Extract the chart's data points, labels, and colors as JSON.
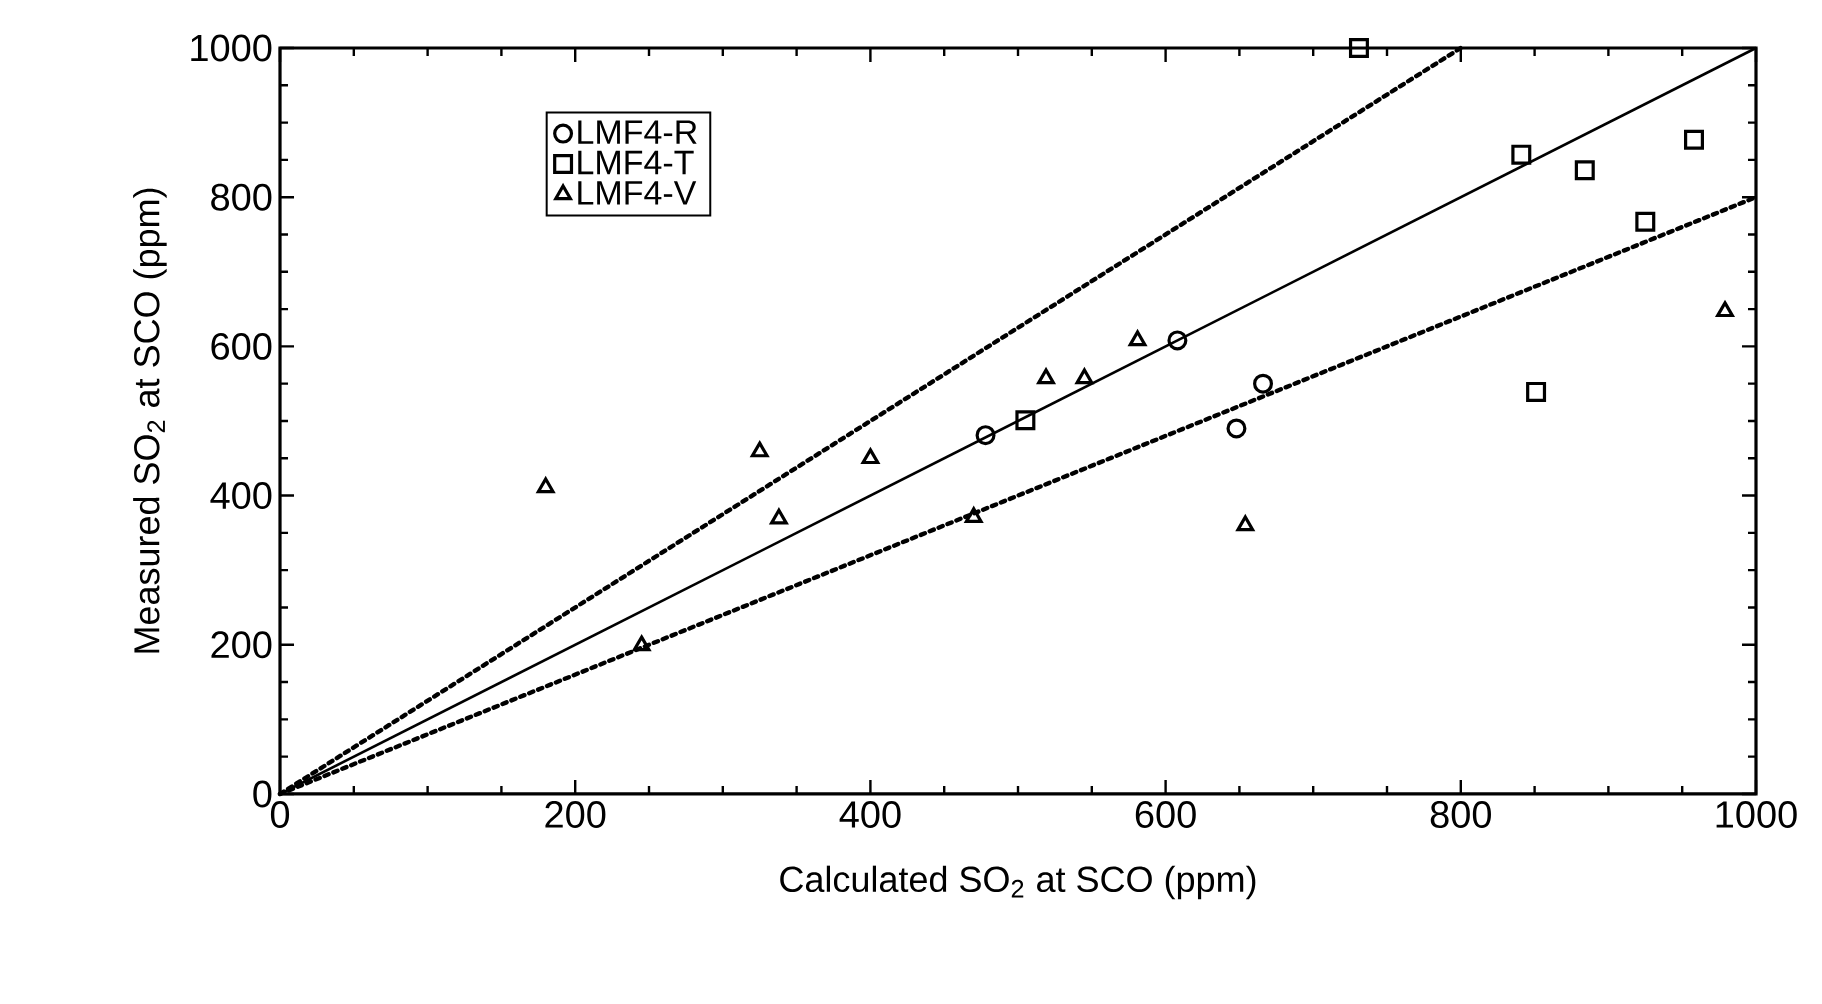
{
  "chart_data": {
    "type": "scatter",
    "xlabel": "Calculated SO$_{2}$ at SCO (ppm)",
    "ylabel": "Measured SO$_{2}$ at SCO (ppm)",
    "xlim": [
      0,
      1000
    ],
    "ylim": [
      0,
      1000
    ],
    "xticks": [
      0,
      200,
      400,
      600,
      800,
      1000
    ],
    "yticks": [
      0,
      200,
      400,
      600,
      800,
      1000
    ],
    "grid": false,
    "legend": "top left",
    "series": [
      {
        "name": "LMF4-R",
        "color": "#000000",
        "marker": "circle",
        "x": [
          478,
          608,
          666,
          648
        ],
        "values": [
          481,
          608,
          550,
          490
        ]
      },
      {
        "name": "LMF4-T",
        "color": "#000000",
        "marker": "square",
        "x": [
          731,
          505,
          841,
          884,
          958,
          925,
          851
        ],
        "values": [
          1000,
          501,
          857,
          836,
          877,
          767,
          539
        ]
      },
      {
        "name": "LMF4-V",
        "color": "#000000",
        "marker": "triangle",
        "x": [
          180,
          325,
          400,
          338,
          245,
          470,
          519,
          545,
          581,
          654,
          979
        ],
        "values": [
          411,
          459,
          450,
          369,
          199,
          371,
          557,
          557,
          608,
          360,
          647
        ]
      },
      {
        "type": "line",
        "color": "#000000",
        "marker": "none",
        "line_style": "solid",
        "x": [
          0,
          1000
        ],
        "values": [
          0,
          1000
        ]
      },
      {
        "type": "line",
        "color": "#000000",
        "marker": "none",
        "line_style": "dotted",
        "x": [
          0,
          800
        ],
        "values": [
          0,
          1000
        ]
      },
      {
        "type": "line",
        "color": "#000000",
        "marker": "none",
        "line_style": "dotted",
        "x": [
          0,
          1000
        ],
        "values": [
          0,
          800
        ]
      }
    ]
  }
}
